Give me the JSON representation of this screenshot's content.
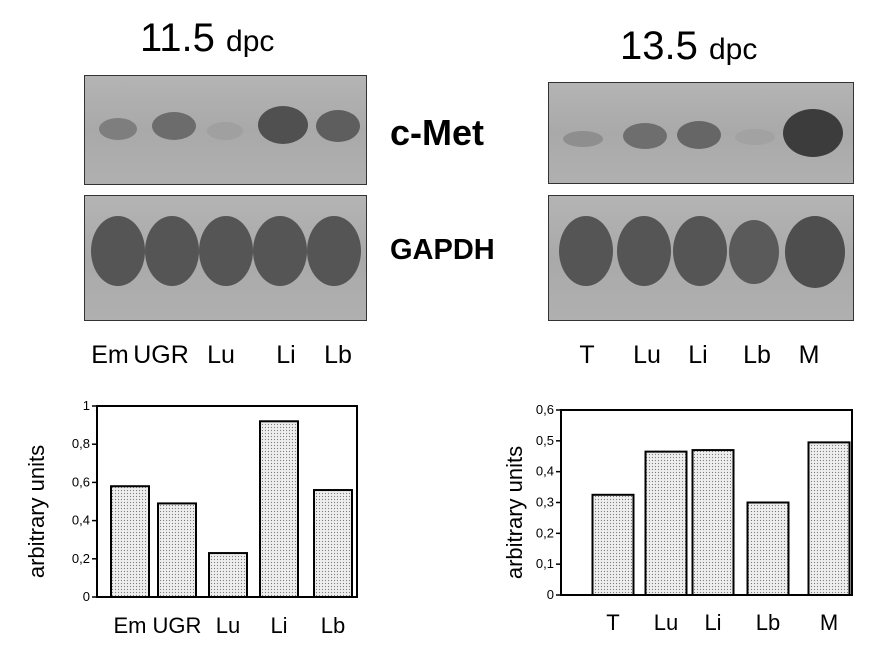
{
  "panels": [
    {
      "title_number": "11.5",
      "title_unit": "dpc",
      "lanes": [
        "Em",
        "UGR",
        "Lu",
        "Li",
        "Lb"
      ]
    },
    {
      "title_number": "13.5",
      "title_unit": "dpc",
      "lanes": [
        "T",
        "Lu",
        "Li",
        "Lb",
        "M"
      ]
    }
  ],
  "probes": {
    "top": "c-Met",
    "bottom": "GAPDH"
  },
  "band_colors": {
    "blot_background": "#acacac",
    "band_dark": "#4a4a4a"
  },
  "chart_data": [
    {
      "type": "bar",
      "categories": [
        "Em",
        "UGR",
        "Lu",
        "Li",
        "Lb"
      ],
      "values": [
        0.58,
        0.49,
        0.23,
        0.92,
        0.56
      ],
      "ylabel": "arbitrary units",
      "ylim": [
        0,
        1
      ],
      "yticks": [
        "0",
        "0,2",
        "0,4",
        "0,6",
        "0,8",
        "1"
      ],
      "ytick_values": [
        0,
        0.2,
        0.4,
        0.6,
        0.8,
        1.0
      ],
      "grid": false
    },
    {
      "type": "bar",
      "categories": [
        "T",
        "Lu",
        "Li",
        "Lb",
        "M"
      ],
      "values": [
        0.325,
        0.465,
        0.47,
        0.3,
        0.495
      ],
      "ylabel": "arbitrary units",
      "ylim": [
        0,
        0.6
      ],
      "yticks": [
        "0",
        "0,1",
        "0,2",
        "0,3",
        "0,4",
        "0,5",
        "0,6"
      ],
      "ytick_values": [
        0,
        0.1,
        0.2,
        0.3,
        0.4,
        0.5,
        0.6
      ],
      "grid": false
    }
  ]
}
